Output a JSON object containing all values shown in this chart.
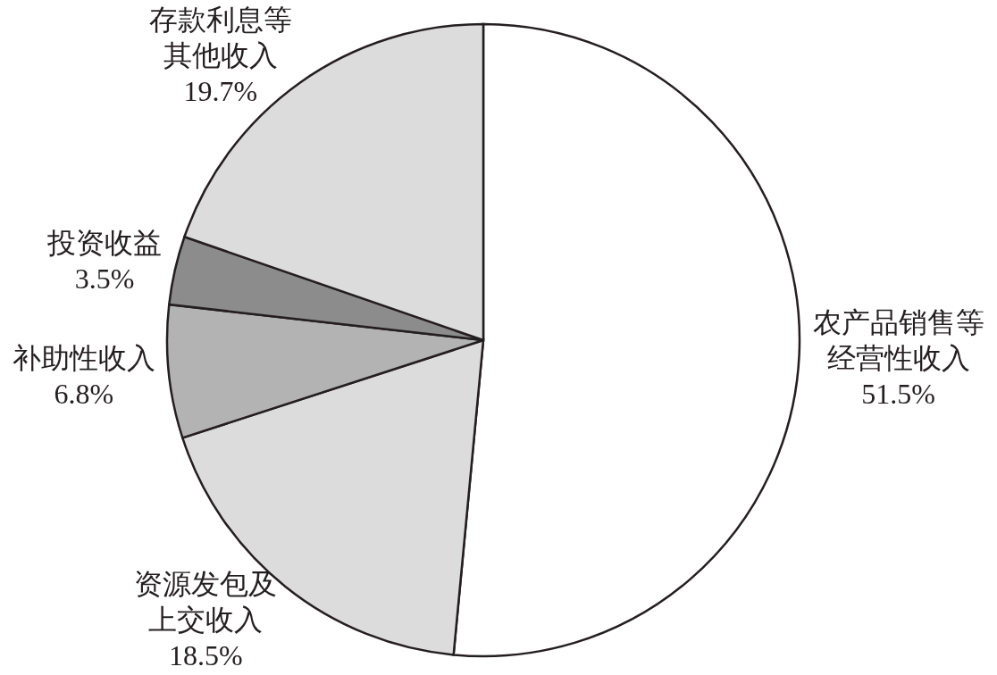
{
  "chart_data": {
    "type": "pie",
    "categories": [
      "农产品销售等经营性收入",
      "资源发包及上交收入",
      "补助性收入",
      "投资收益",
      "存款利息等其他收入"
    ],
    "values": [
      51.5,
      18.5,
      6.8,
      3.5,
      19.7
    ],
    "colors": [
      "#ffffff",
      "#dcdcdc",
      "#b3b3b3",
      "#8c8c8c",
      "#dcdcdc"
    ],
    "value_labels": [
      "51.5%",
      "18.5%",
      "6.8%",
      "3.5%",
      "19.7%"
    ]
  }
}
